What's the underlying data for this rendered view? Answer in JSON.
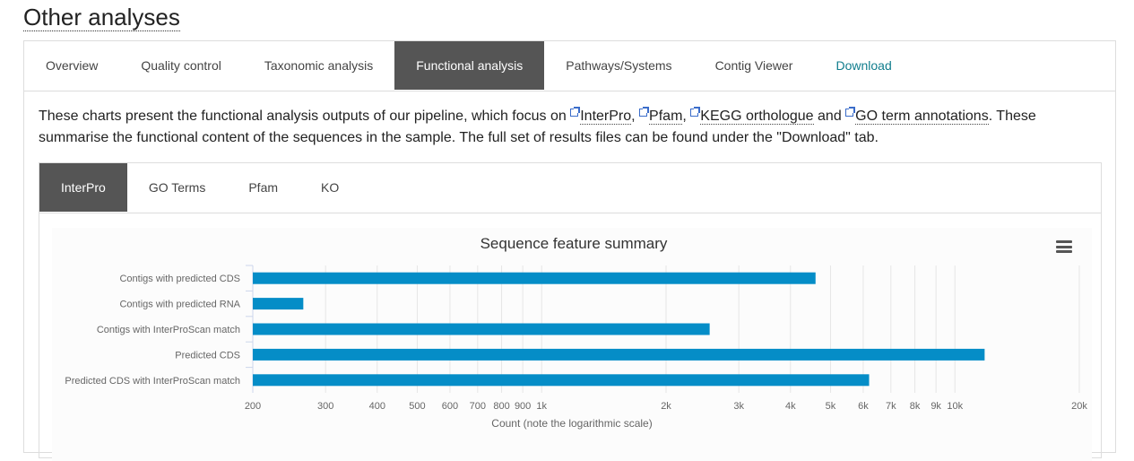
{
  "page_title": "Other analyses",
  "main_tabs": [
    {
      "label": "Overview"
    },
    {
      "label": "Quality control"
    },
    {
      "label": "Taxonomic analysis"
    },
    {
      "label": "Functional analysis"
    },
    {
      "label": "Pathways/Systems"
    },
    {
      "label": "Contig Viewer"
    },
    {
      "label": "Download"
    }
  ],
  "intro": {
    "part1": "These charts present the functional analysis outputs of our pipeline, which focus on ",
    "link_interpro": "InterPro",
    "sep1": ", ",
    "link_pfam": "Pfam",
    "sep2": ", ",
    "link_kegg": "KEGG orthologue",
    "and": " and ",
    "link_go": "GO term annotations",
    "part2": ". These summarise the functional content of the sequences in the sample. The full set of results files can be found under the \"Download\" tab."
  },
  "sub_tabs": [
    {
      "label": "InterPro"
    },
    {
      "label": "GO Terms"
    },
    {
      "label": "Pfam"
    },
    {
      "label": "KO"
    }
  ],
  "chart_data": {
    "type": "bar",
    "orientation": "horizontal",
    "title": "Sequence feature summary",
    "xlabel": "Count (note the logarithmic scale)",
    "ylabel": "",
    "x_scale": "log",
    "xlim": [
      200,
      20000
    ],
    "categories": [
      "Contigs with predicted CDS",
      "Contigs with predicted RNA",
      "Contigs with InterProScan match",
      "Predicted CDS",
      "Predicted CDS with InterProScan match"
    ],
    "values": [
      4600,
      265,
      2550,
      11800,
      6200
    ],
    "tick_labels": [
      "200",
      "300",
      "400",
      "500",
      "600",
      "700",
      "800",
      "900",
      "1k",
      "2k",
      "3k",
      "4k",
      "5k",
      "6k",
      "7k",
      "8k",
      "9k",
      "10k",
      "20k"
    ],
    "tick_values": [
      200,
      300,
      400,
      500,
      600,
      700,
      800,
      900,
      1000,
      2000,
      3000,
      4000,
      5000,
      6000,
      7000,
      8000,
      9000,
      10000,
      20000
    ],
    "bar_color": "#058dc7",
    "grid": true,
    "legend": "none"
  }
}
